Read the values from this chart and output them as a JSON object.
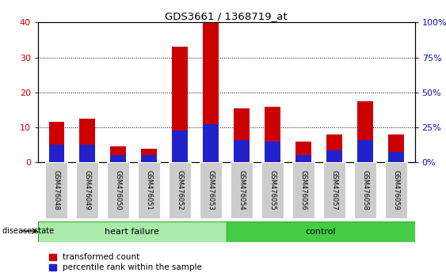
{
  "title": "GDS3661 / 1368719_at",
  "samples": [
    "GSM476048",
    "GSM476049",
    "GSM476050",
    "GSM476051",
    "GSM476052",
    "GSM476053",
    "GSM476054",
    "GSM476055",
    "GSM476056",
    "GSM476057",
    "GSM476058",
    "GSM476059"
  ],
  "red_values": [
    11.5,
    12.5,
    4.5,
    4.0,
    33.0,
    40.0,
    15.5,
    16.0,
    6.0,
    8.0,
    17.5,
    8.0
  ],
  "blue_values": [
    5.0,
    5.0,
    2.0,
    2.0,
    9.0,
    11.0,
    6.5,
    6.0,
    2.0,
    3.5,
    6.5,
    3.0
  ],
  "ylim_left": [
    0,
    40
  ],
  "ylim_right": [
    0,
    100
  ],
  "yticks_left": [
    0,
    10,
    20,
    30,
    40
  ],
  "yticks_right": [
    0,
    25,
    50,
    75,
    100
  ],
  "right_tick_labels": [
    "0%",
    "25%",
    "50%",
    "75%",
    "100%"
  ],
  "bar_width": 0.5,
  "red_color": "#cc0000",
  "blue_color": "#2222cc",
  "grid_color": "black",
  "axis_label_color_left": "#cc0000",
  "axis_label_color_right": "#1111bb",
  "legend_red_label": "transformed count",
  "legend_blue_label": "percentile rank within the sample",
  "disease_state_label": "disease state",
  "tick_label_bg": "#cccccc",
  "bar_area_bg": "#ffffff",
  "hf_color": "#aaeaaa",
  "ctrl_color": "#44cc44",
  "group_border_color": "#33aa33"
}
